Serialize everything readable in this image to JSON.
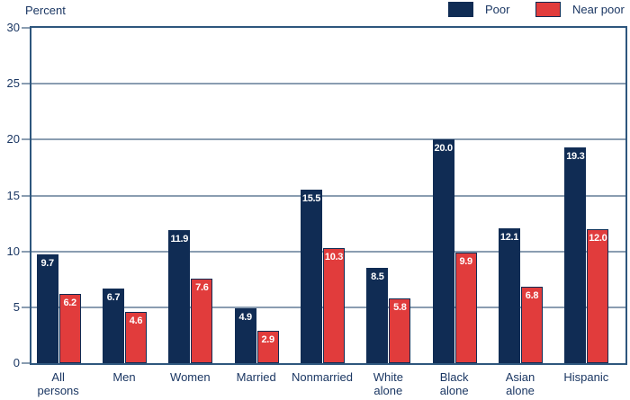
{
  "chart_data": {
    "type": "bar",
    "title": "",
    "ylabel": "Percent",
    "xlabel": "",
    "ylim": [
      0,
      30
    ],
    "yticks": [
      0,
      5,
      10,
      15,
      20,
      25,
      30
    ],
    "grid": true,
    "legend_position": "top-right",
    "categories": [
      "All persons",
      "Men",
      "Women",
      "Married",
      "Nonmarried",
      "White alone",
      "Black alone",
      "Asian alone",
      "Hispanic"
    ],
    "category_label_lines": [
      [
        "All",
        "persons"
      ],
      [
        "Men"
      ],
      [
        "Women"
      ],
      [
        "Married"
      ],
      [
        "Nonmarried"
      ],
      [
        "White",
        "alone"
      ],
      [
        "Black",
        "alone"
      ],
      [
        "Asian",
        "alone"
      ],
      [
        "Hispanic"
      ]
    ],
    "series": [
      {
        "name": "Poor",
        "color": "#102c54",
        "values": [
          9.7,
          6.7,
          11.9,
          4.9,
          15.5,
          8.5,
          20.0,
          12.1,
          19.3
        ]
      },
      {
        "name": "Near poor",
        "color": "#e13c3c",
        "values": [
          6.2,
          4.6,
          7.6,
          2.9,
          10.3,
          5.8,
          9.9,
          6.8,
          12.0
        ]
      }
    ],
    "colors": {
      "poor_bar": "#102c54",
      "near_poor_bar": "#e13c3c",
      "bar_border": "#102c54",
      "plot_border": "#2e567d",
      "gridline": "#8a9db1",
      "text": "#1b3763",
      "value_label_text": "#ffffff",
      "background": "#ffffff"
    }
  },
  "legend": {
    "items": [
      {
        "label": "Poor"
      },
      {
        "label": "Near poor"
      }
    ]
  }
}
